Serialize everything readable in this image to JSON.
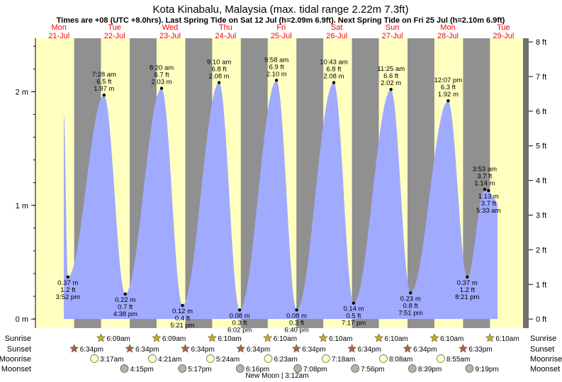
{
  "colors": {
    "day": "#ffffc0",
    "night": "#909090",
    "tide": "#a0aaff",
    "dayLabel": "#ff0000",
    "sunriseStar": "#c8b400",
    "sunsetStar": "#b06040",
    "moonrise": "#ffffc0",
    "moonset": "#b4b4a0"
  },
  "chart_data": {
    "type": "area",
    "title": "Kota Kinabalu, Malaysia (max. tidal range 2.22m 7.3ft)",
    "subtitle": "Times are +08 (UTC +8.0hrs). Last Spring Tide on Sat 12 Jul (h=2.09m 6.9ft). Next Spring Tide on Fri 25 Jul (h=2.10m 6.9ft)",
    "days": [
      {
        "dow": "Mon",
        "date": "21-Jul"
      },
      {
        "dow": "Tue",
        "date": "22-Jul"
      },
      {
        "dow": "Wed",
        "date": "23-Jul"
      },
      {
        "dow": "Thu",
        "date": "24-Jul"
      },
      {
        "dow": "Fri",
        "date": "25-Jul"
      },
      {
        "dow": "Sat",
        "date": "26-Jul"
      },
      {
        "dow": "Sun",
        "date": "27-Jul"
      },
      {
        "dow": "Mon",
        "date": "28-Jul"
      },
      {
        "dow": "Tue",
        "date": "29-Jul"
      }
    ],
    "yleft": {
      "unit": "m",
      "min": -0.08,
      "max": 2.47,
      "ticks": [
        {
          "v": 0,
          "label": "0 m"
        },
        {
          "v": 1,
          "label": "1 m"
        },
        {
          "v": 2,
          "label": "2 m"
        }
      ]
    },
    "yright": {
      "unit": "ft",
      "ticks": [
        "0 ft",
        "1 ft",
        "2 ft",
        "3 ft",
        "4 ft",
        "5 ft",
        "6 ft",
        "7 ft",
        "8 ft"
      ]
    },
    "tides": [
      {
        "type": "low",
        "day": 0,
        "time": "3:52 pm",
        "m": "0.37 m",
        "ft": "1.2 ft",
        "h": 0.37
      },
      {
        "type": "high",
        "day": 1,
        "time": "7:28 am",
        "m": "1.97 m",
        "ft": "6.5 ft",
        "h": 1.97
      },
      {
        "type": "low",
        "day": 1,
        "time": "4:38 pm",
        "m": "0.22 m",
        "ft": "0.7 ft",
        "h": 0.22
      },
      {
        "type": "high",
        "day": 2,
        "time": "8:20 am",
        "m": "2.03 m",
        "ft": "6.7 ft",
        "h": 2.03
      },
      {
        "type": "low",
        "day": 2,
        "time": "5:21 pm",
        "m": "0.12 m",
        "ft": "0.4 ft",
        "h": 0.12
      },
      {
        "type": "high",
        "day": 3,
        "time": "9:10 am",
        "m": "2.08 m",
        "ft": "6.8 ft",
        "h": 2.08
      },
      {
        "type": "low",
        "day": 3,
        "time": "6:02 pm",
        "m": "0.08 m",
        "ft": "0.3 ft",
        "h": 0.08
      },
      {
        "type": "high",
        "day": 4,
        "time": "9:58 am",
        "m": "2.10 m",
        "ft": "6.9 ft",
        "h": 2.1
      },
      {
        "type": "low",
        "day": 4,
        "time": "6:40 pm",
        "m": "0.08 m",
        "ft": "0.3 ft",
        "h": 0.08
      },
      {
        "type": "high",
        "day": 5,
        "time": "10:43 am",
        "m": "2.08 m",
        "ft": "6.8 ft",
        "h": 2.08
      },
      {
        "type": "low",
        "day": 5,
        "time": "7:17 pm",
        "m": "0.14 m",
        "ft": "0.5 ft",
        "h": 0.14
      },
      {
        "type": "high",
        "day": 6,
        "time": "11:25 am",
        "m": "2.02 m",
        "ft": "6.6 ft",
        "h": 2.02
      },
      {
        "type": "low",
        "day": 6,
        "time": "7:51 pm",
        "m": "0.23 m",
        "ft": "0.8 ft",
        "h": 0.23
      },
      {
        "type": "high",
        "day": 7,
        "time": "12:07 pm",
        "m": "1.92 m",
        "ft": "6.3 ft",
        "h": 1.92
      },
      {
        "type": "low",
        "day": 7,
        "time": "8:21 pm",
        "m": "0.37 m",
        "ft": "1.2 ft",
        "h": 0.37
      },
      {
        "type": "high",
        "day": 8,
        "time": "3:53 am",
        "m": "1.14 m",
        "ft": "3.7 ft",
        "h": 1.14
      },
      {
        "type": "low",
        "day": 8,
        "time": "5:33 am",
        "m": "1.13 m",
        "ft": "3.7 ft",
        "h": 1.13
      }
    ],
    "sunrise": [
      {
        "day": 1,
        "time": "6:09am"
      },
      {
        "day": 2,
        "time": "6:09am"
      },
      {
        "day": 3,
        "time": "6:10am"
      },
      {
        "day": 4,
        "time": "6:10am"
      },
      {
        "day": 5,
        "time": "6:10am"
      },
      {
        "day": 6,
        "time": "6:10am"
      },
      {
        "day": 7,
        "time": "6:10am"
      },
      {
        "day": 8,
        "time": "6:10am"
      }
    ],
    "sunset": [
      {
        "day": 0,
        "time": "6:34pm"
      },
      {
        "day": 1,
        "time": "6:34pm"
      },
      {
        "day": 2,
        "time": "6:34pm"
      },
      {
        "day": 3,
        "time": "6:34pm"
      },
      {
        "day": 4,
        "time": "6:34pm"
      },
      {
        "day": 5,
        "time": "6:34pm"
      },
      {
        "day": 6,
        "time": "6:34pm"
      },
      {
        "day": 7,
        "time": "6:33pm"
      }
    ],
    "moonrise": [
      {
        "day": 1,
        "time": "3:17am"
      },
      {
        "day": 2,
        "time": "4:21am"
      },
      {
        "day": 3,
        "time": "5:24am"
      },
      {
        "day": 4,
        "time": "6:23am"
      },
      {
        "day": 5,
        "time": "7:18am"
      },
      {
        "day": 6,
        "time": "8:08am"
      },
      {
        "day": 7,
        "time": "8:55am"
      }
    ],
    "moonset": [
      {
        "day": 1,
        "time": "4:15pm"
      },
      {
        "day": 2,
        "time": "5:17pm"
      },
      {
        "day": 3,
        "time": "6:16pm"
      },
      {
        "day": 4,
        "time": "7:08pm"
      },
      {
        "day": 5,
        "time": "7:56pm"
      },
      {
        "day": 6,
        "time": "8:39pm"
      },
      {
        "day": 7,
        "time": "9:19pm"
      }
    ],
    "rowLabels": {
      "sunrise": "Sunrise",
      "sunset": "Sunset",
      "moonrise": "Moonrise",
      "moonset": "Moonset"
    },
    "moonPhase": "New Moon | 3:12am"
  }
}
